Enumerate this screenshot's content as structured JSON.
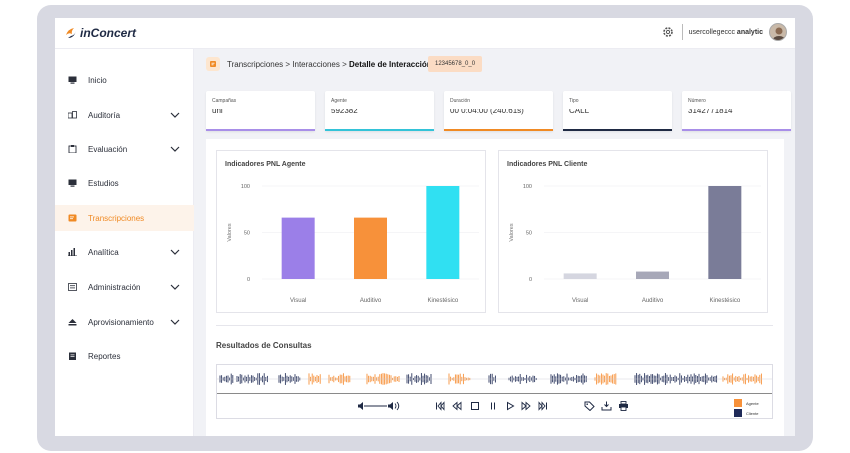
{
  "app": {
    "name": "inConcert",
    "user_prefix": "usercollegeccc",
    "user_role": "analytic"
  },
  "sidebar": {
    "items": [
      {
        "label": "Inicio",
        "icon": "monitor-icon",
        "expandable": false,
        "active": false
      },
      {
        "label": "Auditoría",
        "icon": "audit-icon",
        "expandable": true,
        "active": false
      },
      {
        "label": "Evaluación",
        "icon": "clipboard-icon",
        "expandable": true,
        "active": false
      },
      {
        "label": "Estudios",
        "icon": "monitor-icon",
        "expandable": false,
        "active": false
      },
      {
        "label": "Transcripciones",
        "icon": "transcript-icon",
        "expandable": false,
        "active": true
      },
      {
        "label": "Analítica",
        "icon": "bar-chart-icon",
        "expandable": true,
        "active": false
      },
      {
        "label": "Administración",
        "icon": "list-icon",
        "expandable": true,
        "active": false
      },
      {
        "label": "Aprovisionamiento",
        "icon": "eject-icon",
        "expandable": true,
        "active": false
      },
      {
        "label": "Reportes",
        "icon": "document-icon",
        "expandable": false,
        "active": false
      }
    ]
  },
  "breadcrumb": {
    "path": "Transcripciones > Interacciones > ",
    "current": "Detalle de Interacción",
    "badge": "12345678_0_0"
  },
  "cards": [
    {
      "label": "Campañas",
      "value": "uni",
      "color": "#a88ee8"
    },
    {
      "label": "Agente",
      "value": "592382",
      "color": "#33c3d8"
    },
    {
      "label": "Duración",
      "value": "00 0:04:00 (240.61s)",
      "color": "#f08a24"
    },
    {
      "label": "Tipo",
      "value": "CALL",
      "color": "#1f2a44"
    },
    {
      "label": "Número",
      "value": "3142771814",
      "color": "#a88ee8"
    }
  ],
  "chart_data": [
    {
      "type": "bar",
      "title": "Indicadores PNL Agente",
      "ylabel": "Valores",
      "categories": [
        "Visual",
        "Auditivo",
        "Kinestésico"
      ],
      "values": [
        66,
        66,
        100
      ],
      "colors": [
        "#9b7fe8",
        "#f7913a",
        "#30e0f2"
      ],
      "ylim": [
        0,
        100
      ],
      "yticks": [
        0,
        50,
        100
      ]
    },
    {
      "type": "bar",
      "title": "Indicadores PNL Cliente",
      "ylabel": "Valores",
      "categories": [
        "Visual",
        "Auditivo",
        "Kinestésico"
      ],
      "values": [
        6,
        8,
        100
      ],
      "colors": [
        "#d5d6e0",
        "#a7a8b8",
        "#7a7c98"
      ],
      "ylim": [
        0,
        100
      ],
      "yticks": [
        0,
        50,
        100
      ]
    }
  ],
  "results": {
    "title": "Resultados de Consultas",
    "legend": [
      {
        "label": "Agente",
        "color": "#f7913a"
      },
      {
        "label": "Cliente",
        "color": "#1f2a58"
      }
    ]
  },
  "player": {
    "controls": [
      "volume-icon",
      "skip-start-icon",
      "rewind-icon",
      "stop-icon",
      "pause-icon",
      "play-icon",
      "fast-forward-icon",
      "skip-end-icon",
      "tag-icon",
      "download-icon",
      "print-icon"
    ]
  }
}
